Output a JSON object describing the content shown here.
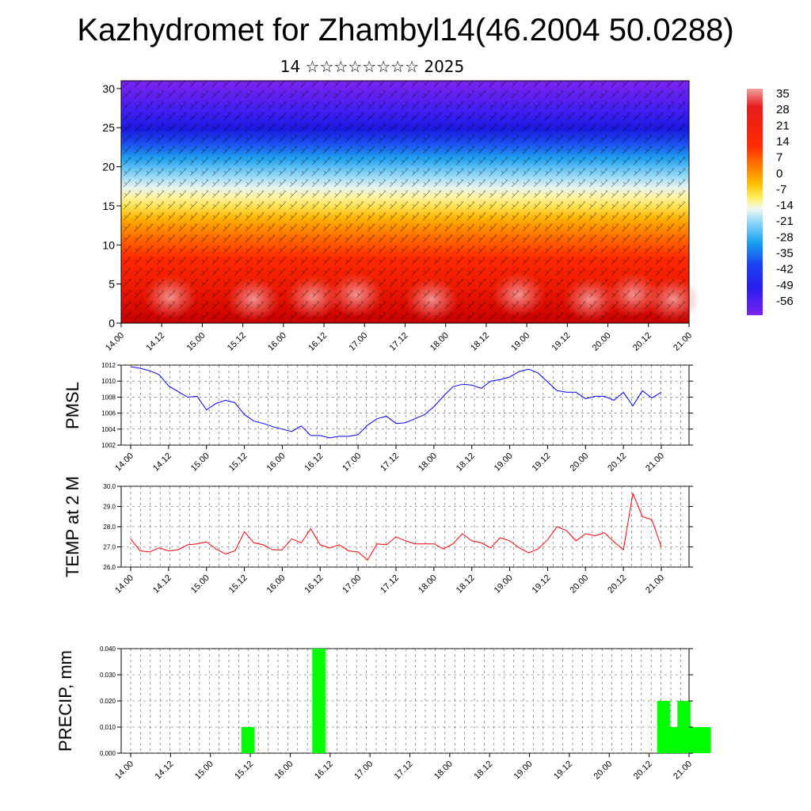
{
  "page": {
    "title": "Kazhydromet for Zhambyl14(46.2004 50.0288)",
    "subtitle": "14 ☆☆☆☆☆☆☆☆ 2025"
  },
  "colors": {
    "pmsl_line": "#0000ff",
    "temp_line": "#ff0000",
    "precip_bar": "#00ff00",
    "cross_section_palette": [
      "#7a1cf0",
      "#3c1cf0",
      "#1a40f0",
      "#1aa0f0",
      "#80d8f8",
      "#e8f4f0",
      "#fff260",
      "#ffd020",
      "#ffa000",
      "#ff6000",
      "#ff1a00",
      "#e80000",
      "#f07070"
    ]
  },
  "chart_data": [
    {
      "type": "heatmap",
      "name": "cross-section",
      "x_ticks": [
        "14.00",
        "14.12",
        "15.00",
        "15.12",
        "16.00",
        "16.12",
        "17.00",
        "17.12",
        "18.00",
        "18.12",
        "19.00",
        "19.12",
        "20.00",
        "20.12",
        "21.00"
      ],
      "y_ticks": [
        "0",
        "5",
        "10",
        "15",
        "20",
        "25",
        "30"
      ],
      "ylim": [
        0,
        31
      ],
      "colorbar_labels": [
        "35",
        "28",
        "21",
        "14",
        "7",
        "0",
        "-7",
        "-14",
        "-21",
        "-28",
        "-35",
        "-42",
        "-49",
        "-56"
      ]
    },
    {
      "type": "line",
      "name": "pmsl",
      "ylabel": "PMSL",
      "ylim": [
        1002,
        1012
      ],
      "y_ticks": [
        "1012",
        "1010",
        "1008",
        "1006",
        "1004",
        "1002"
      ],
      "x_ticks": [
        "14.00",
        "14.12",
        "15.00",
        "15.12",
        "16.00",
        "16.12",
        "17.00",
        "17.12",
        "18.00",
        "18.12",
        "19.00",
        "19.12",
        "20.00",
        "20.12",
        "21.00"
      ],
      "values": [
        1011.8,
        1011.6,
        1011.3,
        1010.8,
        1009.4,
        1008.7,
        1008.0,
        1008.1,
        1006.4,
        1007.2,
        1007.6,
        1007.3,
        1005.8,
        1005.0,
        1004.7,
        1004.3,
        1004.0,
        1003.7,
        1004.4,
        1003.2,
        1003.2,
        1002.9,
        1003.1,
        1003.1,
        1003.3,
        1004.5,
        1005.3,
        1005.6,
        1004.7,
        1004.8,
        1005.3,
        1005.8,
        1006.8,
        1008.1,
        1009.3,
        1009.6,
        1009.5,
        1009.1,
        1010.0,
        1010.2,
        1010.5,
        1011.2,
        1011.5,
        1011.0,
        1009.9,
        1008.8,
        1008.6,
        1008.6,
        1007.8,
        1008.1,
        1008.1,
        1007.6,
        1008.6,
        1006.9,
        1008.8,
        1007.9,
        1008.6
      ]
    },
    {
      "type": "line",
      "name": "temp",
      "ylabel": "TEMP at 2 M",
      "ylim": [
        26,
        30
      ],
      "y_ticks": [
        "30.0",
        "29.0",
        "28.0",
        "27.0",
        "26.0"
      ],
      "x_ticks": [
        "14.00",
        "14.12",
        "15.00",
        "15.12",
        "16.00",
        "16.12",
        "17.00",
        "17.12",
        "18.00",
        "18.12",
        "19.00",
        "19.12",
        "20.00",
        "20.12",
        "21.00"
      ],
      "values": [
        27.4,
        26.8,
        26.75,
        26.95,
        26.8,
        26.85,
        27.1,
        27.15,
        27.25,
        26.9,
        26.65,
        26.8,
        27.75,
        27.2,
        27.1,
        26.85,
        26.85,
        27.4,
        27.2,
        27.9,
        27.1,
        26.95,
        27.1,
        26.8,
        26.75,
        26.35,
        27.15,
        27.1,
        27.5,
        27.3,
        27.15,
        27.15,
        27.15,
        26.9,
        27.15,
        27.65,
        27.3,
        27.2,
        26.95,
        27.45,
        27.3,
        26.95,
        26.7,
        26.9,
        27.35,
        28.0,
        27.8,
        27.3,
        27.65,
        27.55,
        27.7,
        27.25,
        26.85,
        29.65,
        28.5,
        28.35,
        27.0
      ]
    },
    {
      "type": "bar",
      "name": "precip",
      "ylabel": "PRECIP, mm",
      "ylim": [
        0,
        0.04
      ],
      "y_ticks": [
        "0.040",
        "0.030",
        "0.020",
        "0.010",
        "0.000"
      ],
      "x_ticks": [
        "14.00",
        "14.12",
        "15.00",
        "15.12",
        "16.00",
        "16.12",
        "17.00",
        "17.12",
        "18.00",
        "18.12",
        "19.00",
        "19.12",
        "20.00",
        "20.12",
        "21.00"
      ],
      "bars": [
        {
          "t": 37.5,
          "v": 0.01
        },
        {
          "t": 58.5,
          "v": 0.04
        },
        {
          "t": 160.5,
          "v": 0.02
        },
        {
          "t": 163.5,
          "v": 0.01
        },
        {
          "t": 166.5,
          "v": 0.02
        },
        {
          "t": 169.5,
          "v": 0.01
        },
        {
          "t": 172.5,
          "v": 0.01
        }
      ],
      "bar_width_hours": 3
    }
  ]
}
